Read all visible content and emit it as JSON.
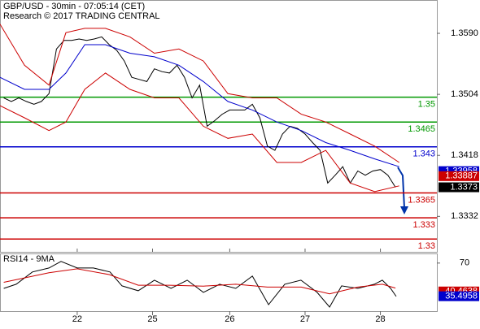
{
  "header": {
    "title": "GBP/USD - 30min - 07:05:14 (CET)",
    "subtitle": "Research © 2017 TRADING CENTRAL"
  },
  "chart_data": [
    {
      "type": "line",
      "xlim": [
        0,
        116
      ],
      "ylim": [
        1.3282,
        1.3637
      ],
      "yticks": [
        {
          "value": 1.359,
          "label": "1.3590"
        },
        1.3504,
        1.3418,
        1.3332
      ],
      "series": [
        {
          "color": "#000000",
          "x": [
            1,
            3,
            5,
            7,
            9,
            11,
            13,
            15,
            17,
            19,
            21,
            23,
            25,
            27,
            29,
            31,
            33,
            35,
            37,
            39,
            41,
            43,
            45,
            47,
            49,
            51,
            53,
            55,
            57,
            59,
            61,
            63,
            65,
            67,
            69,
            71,
            73,
            75,
            77,
            79,
            81,
            83,
            85,
            87,
            89,
            91,
            93,
            95,
            97,
            99,
            101,
            103,
            105
          ],
          "values": [
            1.3499,
            1.3494,
            1.3499,
            1.3494,
            1.349,
            1.3494,
            1.3505,
            1.3568,
            1.358,
            1.358,
            1.3582,
            1.358,
            1.3582,
            1.3585,
            1.3574,
            1.3566,
            1.3551,
            1.3528,
            1.3525,
            1.3522,
            1.354,
            1.3536,
            1.3534,
            1.3545,
            1.3528,
            1.3499,
            1.3517,
            1.3459,
            1.3467,
            1.3476,
            1.3482,
            1.3482,
            1.3482,
            1.349,
            1.3471,
            1.3431,
            1.3425,
            1.3448,
            1.3459,
            1.3456,
            1.3448,
            1.3436,
            1.3425,
            1.3379,
            1.339,
            1.3402,
            1.3379,
            1.3396,
            1.339,
            1.3396,
            1.3398,
            1.339,
            1.3373
          ]
        },
        {
          "color": "#0000cc",
          "x": [
            0,
            6.5,
            13,
            17.5,
            22.5,
            28,
            34.5,
            41,
            47.5,
            54,
            60.5,
            67,
            73.5,
            80,
            86.5,
            93,
            99.5,
            106
          ],
          "values": [
            1.3528,
            1.3511,
            1.3511,
            1.3534,
            1.3574,
            1.3574,
            1.3562,
            1.3557,
            1.3545,
            1.3522,
            1.3494,
            1.3482,
            1.3465,
            1.3453,
            1.3436,
            1.3425,
            1.3413,
            1.3402
          ]
        },
        {
          "color": "#cc0000",
          "x": [
            0,
            6.5,
            13,
            17.5,
            22.5,
            28,
            34.5,
            41,
            47.5,
            54,
            60.5,
            67,
            73.5,
            80,
            86.5,
            93,
            99.5,
            106
          ],
          "values": [
            1.3603,
            1.3545,
            1.3517,
            1.3591,
            1.3597,
            1.3597,
            1.3585,
            1.3562,
            1.3568,
            1.3551,
            1.3505,
            1.3499,
            1.3499,
            1.3476,
            1.3465,
            1.3448,
            1.3431,
            1.3408
          ]
        },
        {
          "color": "#cc0000",
          "x": [
            0,
            6.5,
            13,
            17.5,
            22.5,
            28,
            34.5,
            41,
            47.5,
            54,
            60.5,
            67,
            73.5,
            80,
            86.5,
            93,
            99.5,
            106
          ],
          "values": [
            1.3488,
            1.3471,
            1.3453,
            1.3465,
            1.3511,
            1.3534,
            1.3511,
            1.3499,
            1.3499,
            1.3459,
            1.3442,
            1.3448,
            1.3408,
            1.3408,
            1.3425,
            1.3379,
            1.3367,
            1.3375
          ]
        }
      ],
      "levels": [
        {
          "value": 1.35,
          "color": "#009900"
        },
        {
          "value": 1.3465,
          "color": "#009900"
        },
        {
          "value": 1.343,
          "color": "#0000cc"
        },
        {
          "value": 1.3365,
          "color": "#cc0000"
        },
        {
          "value": 1.333,
          "color": "#cc0000"
        },
        {
          "value": 1.33,
          "color": "#cc0000"
        }
      ],
      "price_tags": [
        {
          "value": 1.33958,
          "color": "#0000cc"
        },
        {
          "value": 1.33887,
          "color": "#cc0000"
        },
        {
          "value": 1.3373,
          "color": "#000000"
        }
      ]
    },
    {
      "type": "line",
      "title": "RSI14 - 9MA",
      "xlim": [
        0,
        116
      ],
      "ylim": [
        20,
        80
      ],
      "yticks": [
        70
      ],
      "xticks": [
        {
          "value": 20.5,
          "label": "22"
        },
        {
          "value": 40.5,
          "label": "25"
        },
        {
          "value": 61,
          "label": "26"
        },
        {
          "value": 81,
          "label": "27"
        },
        {
          "value": 101,
          "label": "28"
        }
      ],
      "series": [
        {
          "color": "#000000",
          "x": [
            1,
            4.3,
            8.6,
            13,
            16.2,
            20.5,
            24.8,
            29.2,
            32.4,
            36.7,
            41,
            45.4,
            49.7,
            54,
            58.3,
            62.6,
            67,
            71.3,
            75.6,
            79.9,
            84.2,
            87.5,
            90.7,
            95,
            99.4,
            101.5,
            103.7,
            105.2
          ],
          "values": [
            43.7,
            48,
            60.7,
            64.9,
            71.7,
            64.9,
            64.9,
            60.7,
            46.3,
            41.2,
            52.2,
            43.7,
            52.2,
            39.5,
            48,
            43.7,
            56.4,
            26.8,
            48,
            52.2,
            39.5,
            24.2,
            46.3,
            43.7,
            48,
            52.2,
            43.7,
            35.3
          ]
        },
        {
          "color": "#cc0000",
          "x": [
            1,
            13,
            20.5,
            29,
            36.7,
            45,
            54,
            62.6,
            71,
            80,
            87.5,
            95,
            101.5,
            105
          ],
          "values": [
            50,
            60,
            64,
            58,
            47,
            47,
            46,
            48,
            45,
            45,
            38,
            45,
            48,
            44
          ]
        }
      ],
      "price_tags": [
        {
          "value": 40.4638,
          "color": "#cc0000"
        },
        {
          "value": 35.4958,
          "color": "#0000cc"
        }
      ]
    }
  ]
}
